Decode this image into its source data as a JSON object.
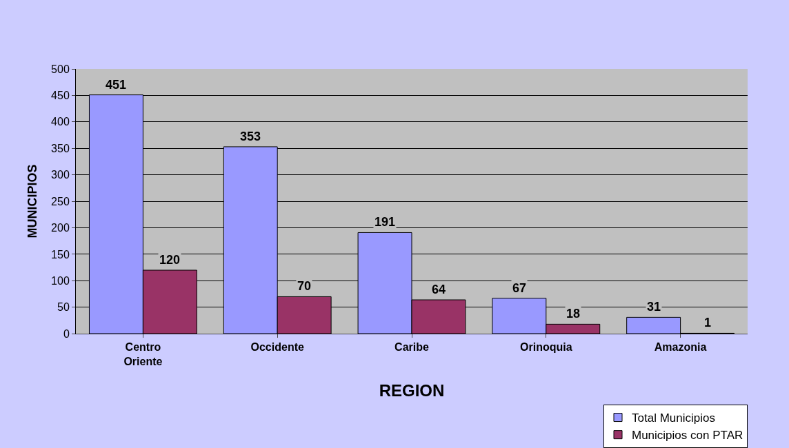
{
  "chart_data": {
    "type": "bar",
    "xlabel": "REGION",
    "ylabel": "MUNICIPIOS",
    "categories": [
      "Centro\nOriente",
      "Occidente",
      "Caribe",
      "Orinoquia",
      "Amazonia"
    ],
    "series": [
      {
        "name": "Total Municipios",
        "color": "#9999ff",
        "values": [
          451,
          353,
          191,
          67,
          31
        ]
      },
      {
        "name": "Municipios con PTAR",
        "color": "#993366",
        "values": [
          120,
          70,
          64,
          18,
          1
        ]
      }
    ],
    "ylim": [
      0,
      500
    ],
    "yticks": [
      0,
      50,
      100,
      150,
      200,
      250,
      300,
      350,
      400,
      450,
      500
    ],
    "grid": "y",
    "legend": "bottom right",
    "data_labels": true
  }
}
